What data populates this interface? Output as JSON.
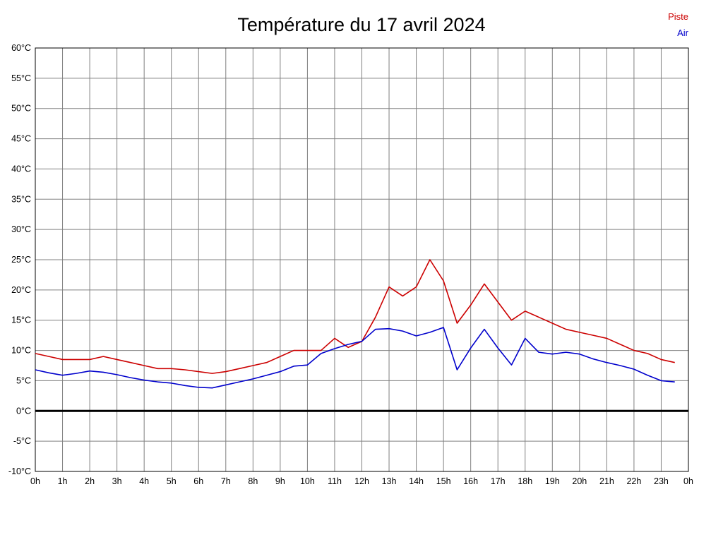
{
  "chart_data": {
    "type": "line",
    "title": "Température du 17 avril 2024",
    "xlabel": "",
    "ylabel": "",
    "xlim": [
      0,
      24
    ],
    "ylim": [
      -10,
      60
    ],
    "grid": true,
    "grid_color": "#808080",
    "zero_line": true,
    "zero_line_color": "#000000",
    "legend_position": "top-right",
    "x_tick_labels": [
      "0h",
      "1h",
      "2h",
      "3h",
      "4h",
      "5h",
      "6h",
      "7h",
      "8h",
      "9h",
      "10h",
      "11h",
      "12h",
      "13h",
      "14h",
      "15h",
      "16h",
      "17h",
      "18h",
      "19h",
      "20h",
      "21h",
      "22h",
      "23h",
      "0h"
    ],
    "y_ticks": [
      60,
      55,
      50,
      45,
      40,
      35,
      30,
      25,
      20,
      15,
      10,
      5,
      0,
      -5,
      -10
    ],
    "y_tick_suffix": "°C",
    "x": [
      0,
      0.5,
      1,
      1.5,
      2,
      2.5,
      3,
      3.5,
      4,
      4.5,
      5,
      5.5,
      6,
      6.5,
      7,
      7.5,
      8,
      8.5,
      9,
      9.5,
      10,
      10.5,
      11,
      11.5,
      12,
      12.5,
      13,
      13.5,
      14,
      14.5,
      15,
      15.5,
      16,
      16.5,
      17,
      17.5,
      18,
      18.5,
      19,
      19.5,
      20,
      20.5,
      21,
      21.5,
      22,
      22.5,
      23,
      23.5
    ],
    "series": [
      {
        "name": "Piste",
        "color": "#cc0000",
        "values": [
          9.5,
          9,
          8.5,
          8.5,
          8.5,
          9,
          8.5,
          8,
          7.5,
          7,
          7,
          6.8,
          6.5,
          6.2,
          6.5,
          7,
          7.5,
          8,
          9,
          10,
          10,
          10,
          12,
          10.5,
          11.5,
          15.5,
          20.5,
          19,
          20.5,
          25,
          21.5,
          14.5,
          17.5,
          21,
          18,
          15,
          16.5,
          15.5,
          14.5,
          13.5,
          13,
          12.5,
          12,
          11,
          10,
          9.5,
          8.5,
          8
        ]
      },
      {
        "name": "Air",
        "color": "#0000cc",
        "values": [
          6.8,
          6.3,
          5.9,
          6.2,
          6.6,
          6.4,
          6,
          5.5,
          5.1,
          4.8,
          4.6,
          4.2,
          3.9,
          3.8,
          4.3,
          4.8,
          5.3,
          5.9,
          6.5,
          7.4,
          7.6,
          9.5,
          10.3,
          11,
          11.5,
          13.5,
          13.6,
          13.2,
          12.4,
          13,
          13.8,
          6.8,
          10.4,
          13.5,
          10.4,
          7.6,
          12,
          9.7,
          9.4,
          9.7,
          9.4,
          8.6,
          8,
          7.5,
          6.9,
          5.9,
          5,
          4.8
        ]
      }
    ]
  }
}
